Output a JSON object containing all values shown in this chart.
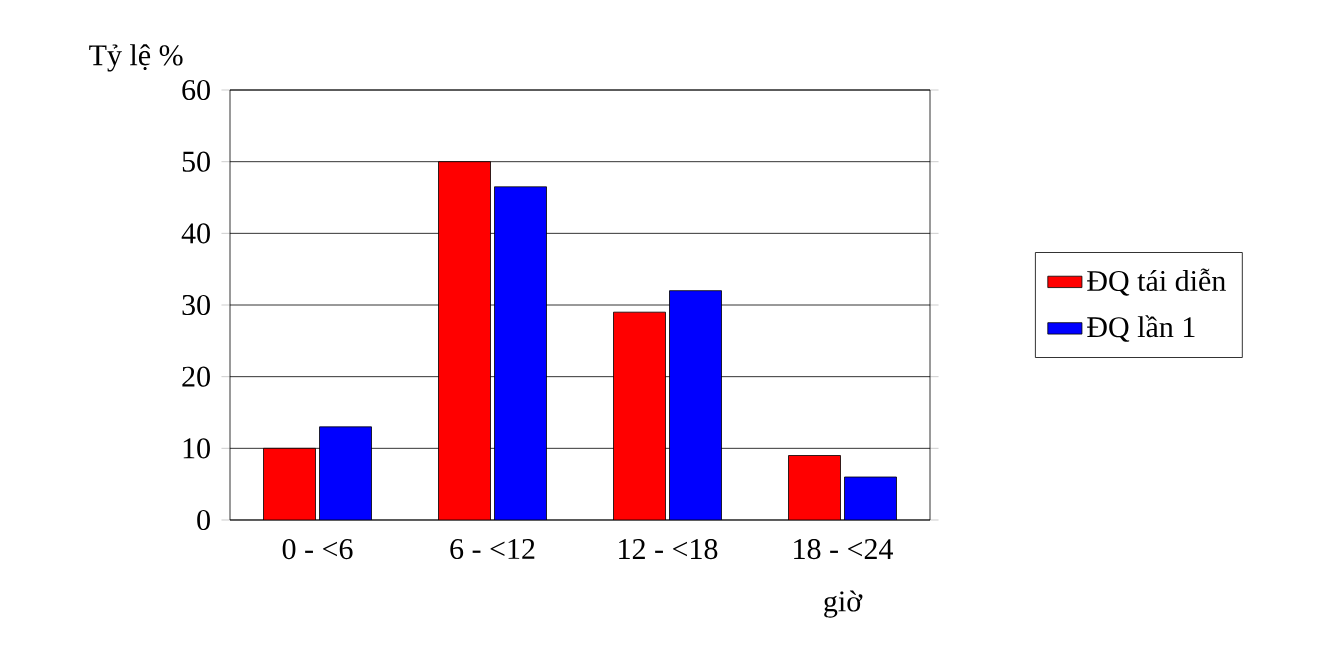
{
  "chart_data": {
    "type": "bar",
    "ylabel": "Tỷ lệ %",
    "xlabel": "giờ",
    "categories": [
      "0 - <6",
      "6 - <12",
      "12 - <18",
      "18 - <24"
    ],
    "series": [
      {
        "name": "ĐQ tái diễn",
        "color": "#ff0000",
        "values": [
          10,
          50,
          29,
          9
        ]
      },
      {
        "name": "ĐQ lần 1",
        "color": "#0000ff",
        "values": [
          13,
          46.5,
          32,
          6
        ]
      }
    ],
    "ylim": [
      0,
      60
    ],
    "yticks": [
      0,
      10,
      20,
      30,
      40,
      50,
      60
    ],
    "grid": "y",
    "legend": "right"
  }
}
